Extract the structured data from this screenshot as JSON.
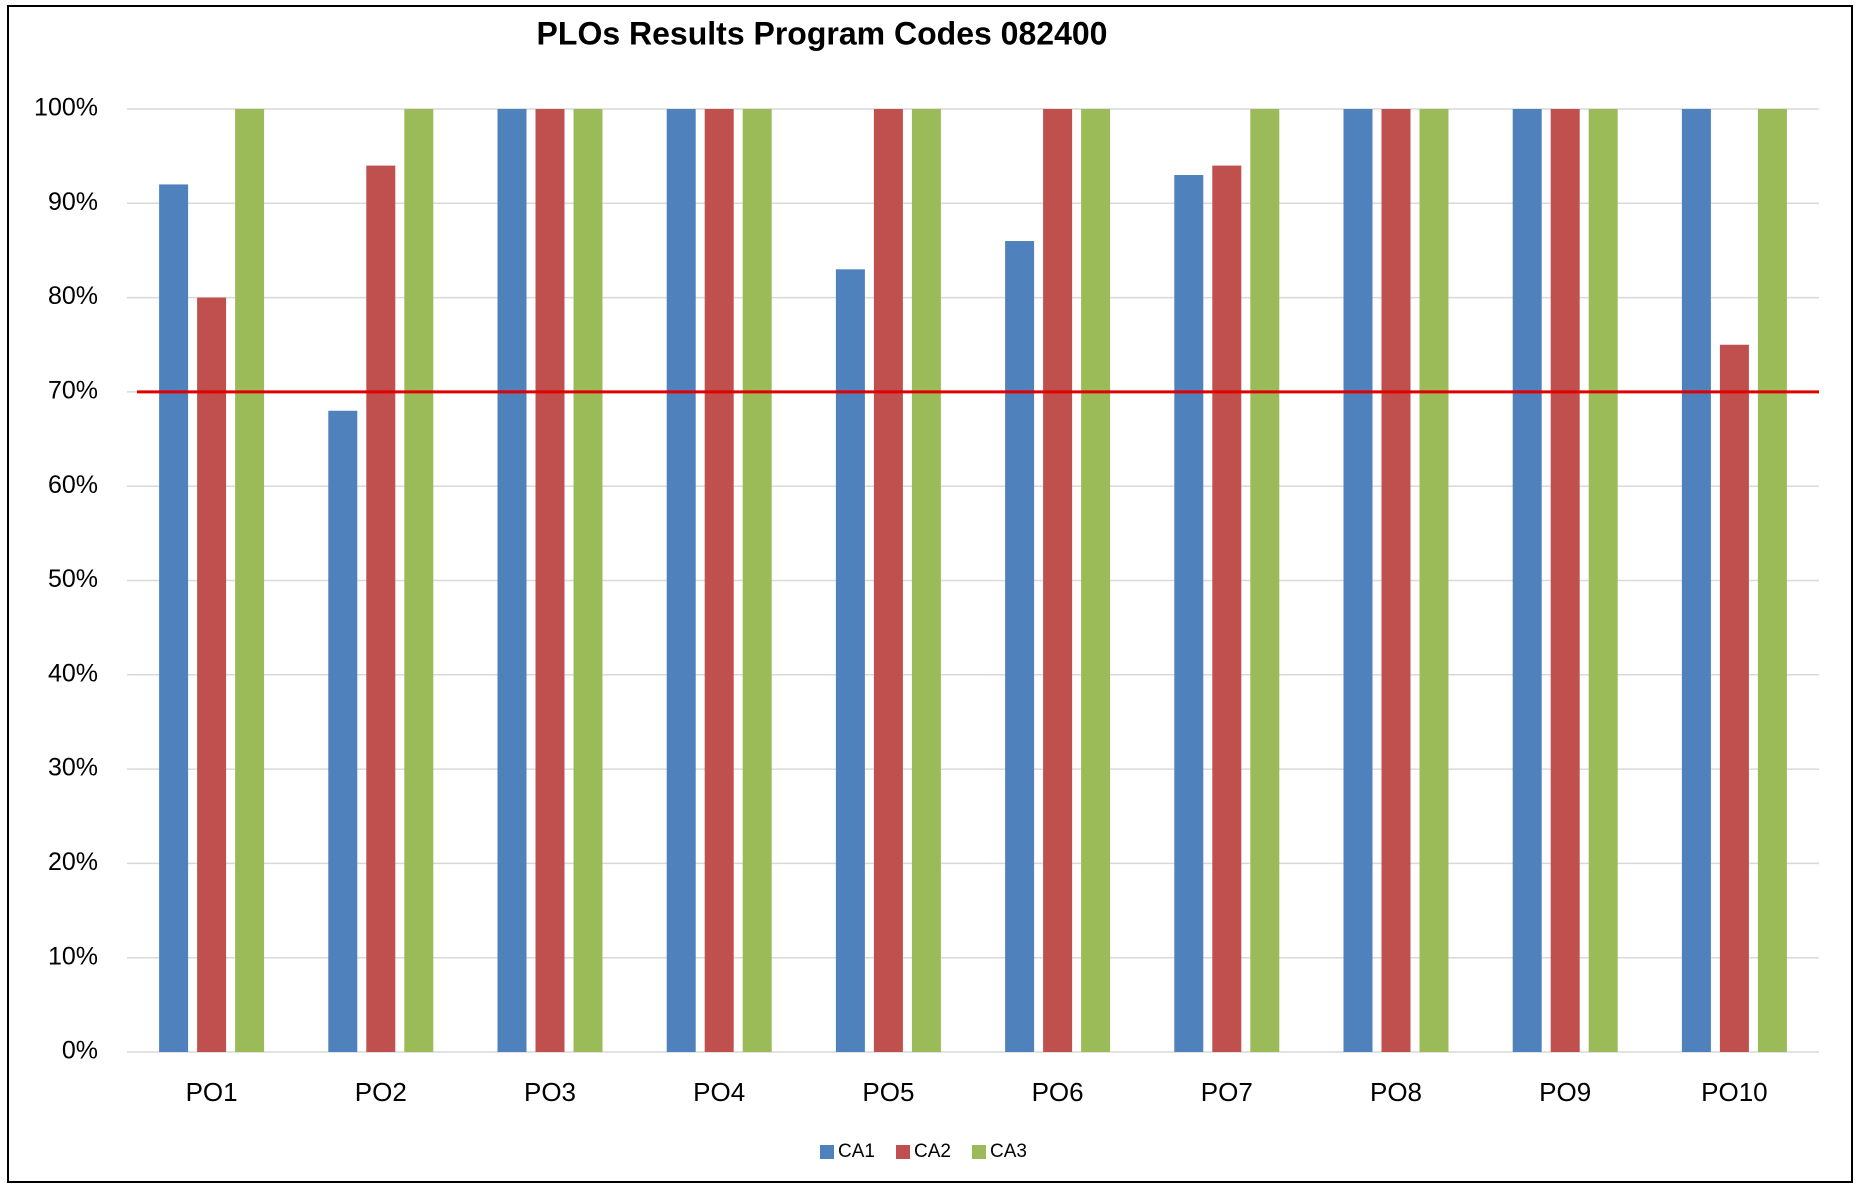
{
  "chart_data": {
    "type": "bar",
    "title": "PLOs Results Program Codes 082400",
    "categories": [
      "PO1",
      "PO2",
      "PO3",
      "PO4",
      "PO5",
      "PO6",
      "PO7",
      "PO8",
      "PO9",
      "PO10"
    ],
    "series": [
      {
        "name": "CA1",
        "color": "#4f81bd",
        "values": [
          92,
          68,
          100,
          100,
          83,
          86,
          93,
          100,
          100,
          100
        ]
      },
      {
        "name": "CA2",
        "color": "#c0504d",
        "values": [
          80,
          94,
          100,
          100,
          100,
          100,
          94,
          100,
          100,
          75
        ]
      },
      {
        "name": "CA3",
        "color": "#9bbb59",
        "values": [
          100,
          100,
          100,
          100,
          100,
          100,
          100,
          100,
          100,
          100
        ]
      }
    ],
    "ylim": [
      0,
      100
    ],
    "yticks": [
      {
        "value": 0,
        "label": "0%"
      },
      {
        "value": 10,
        "label": "10%"
      },
      {
        "value": 20,
        "label": "20%"
      },
      {
        "value": 30,
        "label": "30%"
      },
      {
        "value": 40,
        "label": "40%"
      },
      {
        "value": 50,
        "label": "50%"
      },
      {
        "value": 60,
        "label": "60%"
      },
      {
        "value": 70,
        "label": "70%"
      },
      {
        "value": 80,
        "label": "80%"
      },
      {
        "value": 90,
        "label": "90%"
      },
      {
        "value": 100,
        "label": "100%"
      }
    ],
    "grid": true,
    "threshold": {
      "value": 70,
      "color": "#e00000"
    },
    "legend": "bottom"
  }
}
